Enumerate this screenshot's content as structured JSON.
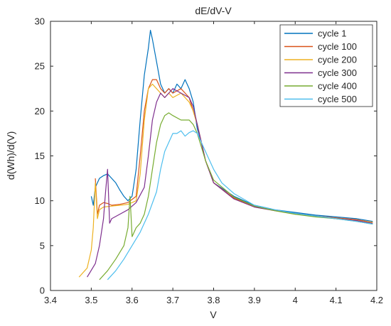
{
  "chart_data": {
    "type": "line",
    "title": "dE/dV-V",
    "xlabel": "V",
    "ylabel": "d(Wh)/d(V)",
    "xlim": [
      3.4,
      4.2
    ],
    "ylim": [
      0,
      30
    ],
    "x_ticks": [
      3.4,
      3.5,
      3.6,
      3.7,
      3.8,
      3.9,
      4.0,
      4.1,
      4.2
    ],
    "x_tick_labels": [
      "3.4",
      "3.5",
      "3.6",
      "3.7",
      "3.8",
      "3.9",
      "4",
      "4.1",
      "4.2"
    ],
    "y_ticks": [
      0,
      5,
      10,
      15,
      20,
      25,
      30
    ],
    "y_tick_labels": [
      "0",
      "5",
      "10",
      "15",
      "20",
      "25",
      "30"
    ],
    "grid": false,
    "legend_position": "top-right",
    "series": [
      {
        "name": "cycle 1",
        "color": "#0072BD",
        "x": [
          3.5,
          3.505,
          3.51,
          3.515,
          3.52,
          3.53,
          3.54,
          3.55,
          3.56,
          3.57,
          3.58,
          3.59,
          3.6,
          3.61,
          3.62,
          3.63,
          3.64,
          3.645,
          3.65,
          3.66,
          3.67,
          3.68,
          3.69,
          3.7,
          3.71,
          3.72,
          3.73,
          3.74,
          3.75,
          3.76,
          3.77,
          3.78,
          3.8,
          3.85,
          3.9,
          3.95,
          4.0,
          4.05,
          4.1,
          4.15,
          4.19
        ],
        "y": [
          10.5,
          9.5,
          11.5,
          12.0,
          12.5,
          12.8,
          13.0,
          12.5,
          12.0,
          11.2,
          10.5,
          10.0,
          10.5,
          13.5,
          19.0,
          24.0,
          27.0,
          29.0,
          28.0,
          25.5,
          23.0,
          22.0,
          22.5,
          22.0,
          23.0,
          22.5,
          23.5,
          22.5,
          21.0,
          18.0,
          16.5,
          14.5,
          12.0,
          10.5,
          9.5,
          9.0,
          8.7,
          8.4,
          8.2,
          8.0,
          7.7
        ]
      },
      {
        "name": "cycle 100",
        "color": "#D95319",
        "x": [
          3.51,
          3.515,
          3.52,
          3.53,
          3.54,
          3.55,
          3.57,
          3.59,
          3.61,
          3.62,
          3.63,
          3.64,
          3.65,
          3.66,
          3.67,
          3.68,
          3.69,
          3.7,
          3.72,
          3.74,
          3.75,
          3.76,
          3.77,
          3.78,
          3.8,
          3.85,
          3.9,
          3.95,
          4.0,
          4.05,
          4.1,
          4.15,
          4.19
        ],
        "y": [
          12.5,
          8.5,
          9.5,
          9.8,
          9.7,
          9.5,
          9.6,
          9.8,
          10.5,
          15.0,
          20.0,
          22.5,
          23.5,
          23.5,
          22.5,
          22.0,
          22.5,
          22.0,
          22.5,
          21.5,
          20.0,
          18.5,
          16.5,
          14.5,
          12.0,
          10.3,
          9.4,
          8.9,
          8.6,
          8.3,
          8.1,
          7.9,
          7.6
        ]
      },
      {
        "name": "cycle 200",
        "color": "#EDB120",
        "x": [
          3.47,
          3.49,
          3.5,
          3.505,
          3.51,
          3.515,
          3.52,
          3.53,
          3.55,
          3.57,
          3.59,
          3.61,
          3.62,
          3.63,
          3.64,
          3.65,
          3.66,
          3.67,
          3.68,
          3.69,
          3.7,
          3.72,
          3.74,
          3.75,
          3.76,
          3.77,
          3.78,
          3.8,
          3.85,
          3.9,
          3.95,
          4.0,
          4.05,
          4.1,
          4.15,
          4.19
        ],
        "y": [
          1.5,
          2.5,
          4.5,
          7.0,
          12.0,
          8.0,
          9.0,
          9.3,
          9.4,
          9.5,
          9.6,
          10.0,
          13.0,
          19.0,
          22.5,
          23.0,
          22.5,
          22.0,
          21.5,
          22.0,
          21.5,
          22.0,
          21.0,
          20.0,
          18.5,
          16.5,
          14.5,
          12.0,
          10.2,
          9.3,
          8.9,
          8.5,
          8.3,
          8.0,
          7.8,
          7.6
        ]
      },
      {
        "name": "cycle 300",
        "color": "#7E2F8E",
        "x": [
          3.49,
          3.51,
          3.52,
          3.53,
          3.535,
          3.54,
          3.545,
          3.55,
          3.57,
          3.59,
          3.61,
          3.63,
          3.64,
          3.65,
          3.66,
          3.67,
          3.68,
          3.69,
          3.7,
          3.72,
          3.74,
          3.75,
          3.76,
          3.77,
          3.78,
          3.8,
          3.85,
          3.9,
          3.95,
          4.0,
          4.05,
          4.1,
          4.15,
          4.19
        ],
        "y": [
          1.5,
          3.0,
          5.0,
          8.0,
          11.0,
          13.5,
          7.5,
          8.0,
          8.5,
          9.0,
          9.8,
          11.5,
          15.0,
          19.0,
          21.0,
          22.0,
          21.5,
          22.0,
          22.5,
          22.0,
          21.5,
          20.5,
          18.5,
          16.5,
          14.5,
          12.0,
          10.2,
          9.3,
          8.9,
          8.6,
          8.3,
          8.0,
          7.8,
          7.5
        ]
      },
      {
        "name": "cycle 400",
        "color": "#77AC30",
        "x": [
          3.52,
          3.54,
          3.56,
          3.58,
          3.59,
          3.595,
          3.6,
          3.61,
          3.62,
          3.63,
          3.64,
          3.65,
          3.66,
          3.67,
          3.68,
          3.69,
          3.7,
          3.72,
          3.74,
          3.75,
          3.76,
          3.77,
          3.78,
          3.8,
          3.85,
          3.9,
          3.95,
          4.0,
          4.05,
          4.1,
          4.15,
          4.19
        ],
        "y": [
          1.2,
          2.2,
          3.5,
          5.0,
          7.0,
          10.5,
          6.0,
          7.0,
          7.5,
          8.5,
          10.5,
          13.5,
          16.5,
          18.5,
          19.5,
          19.8,
          19.5,
          19.0,
          19.0,
          18.5,
          17.5,
          16.0,
          14.5,
          12.3,
          10.4,
          9.4,
          8.9,
          8.5,
          8.2,
          8.0,
          7.7,
          7.4
        ]
      },
      {
        "name": "cycle 500",
        "color": "#4DBEEE",
        "x": [
          3.54,
          3.56,
          3.58,
          3.6,
          3.62,
          3.64,
          3.66,
          3.67,
          3.68,
          3.69,
          3.7,
          3.71,
          3.72,
          3.73,
          3.74,
          3.75,
          3.76,
          3.77,
          3.78,
          3.8,
          3.82,
          3.85,
          3.9,
          3.95,
          4.0,
          4.05,
          4.1,
          4.15,
          4.19
        ],
        "y": [
          1.2,
          2.2,
          3.5,
          5.0,
          6.5,
          8.5,
          11.0,
          13.5,
          15.5,
          16.5,
          17.5,
          17.5,
          17.8,
          17.2,
          17.6,
          17.8,
          17.5,
          16.5,
          15.5,
          13.5,
          12.0,
          10.8,
          9.5,
          9.0,
          8.6,
          8.3,
          8.0,
          7.7,
          7.4
        ]
      }
    ]
  }
}
